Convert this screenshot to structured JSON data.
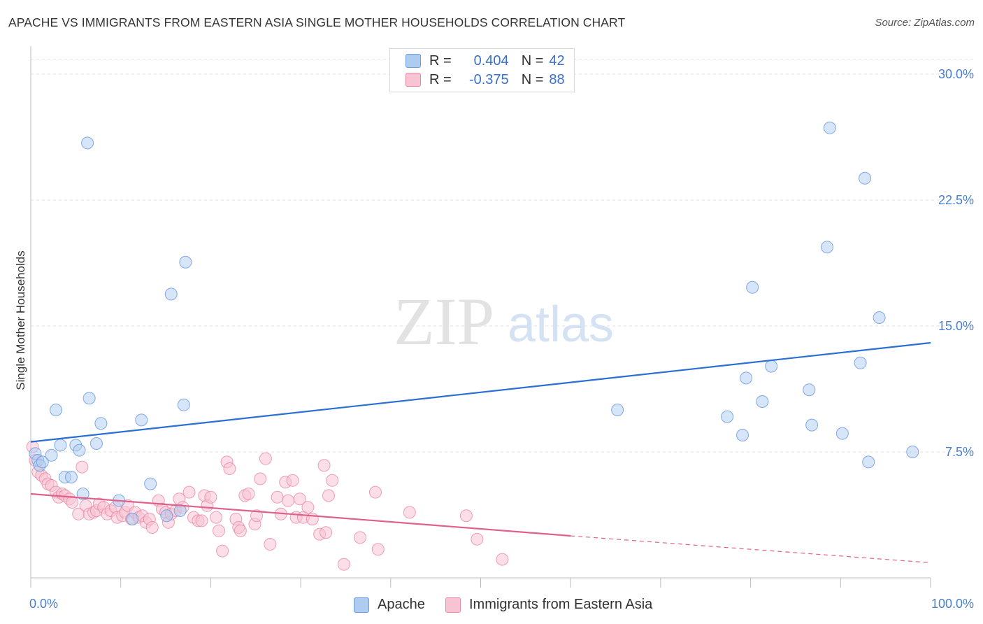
{
  "title": "APACHE VS IMMIGRANTS FROM EASTERN ASIA SINGLE MOTHER HOUSEHOLDS CORRELATION CHART",
  "source": "Source: ZipAtlas.com",
  "watermark": {
    "zip": "ZIP",
    "atlas": "atlas"
  },
  "legend_top": {
    "rows": [
      {
        "r_label": "R =",
        "r_value": "0.404",
        "n_label": "N =",
        "n_value": "42",
        "color": "#aecbf0",
        "border": "#6f9be0"
      },
      {
        "r_label": "R =",
        "r_value": "-0.375",
        "n_label": "N =",
        "n_value": "88",
        "color": "#f8c3d3",
        "border": "#e889a8"
      }
    ]
  },
  "legend_bottom": [
    {
      "label": "Apache",
      "color": "#aecbf0",
      "border": "#6f9be0"
    },
    {
      "label": "Immigrants from Eastern Asia",
      "color": "#f8c3d3",
      "border": "#e889a8"
    }
  ],
  "chart_data": {
    "type": "scatter",
    "xlabel": "",
    "ylabel": "Single Mother Households",
    "xlim": [
      0,
      100
    ],
    "ylim": [
      0,
      31.5
    ],
    "x_tick_labels": [
      "0.0%",
      "100.0%"
    ],
    "y_ticks": [
      7.5,
      15.0,
      22.5,
      30.0
    ],
    "y_tick_labels": [
      "7.5%",
      "15.0%",
      "22.5%",
      "30.0%"
    ],
    "grid": "horizontal dashed",
    "colors": {
      "apache": "#6f9be0",
      "apache_line": "#2a6fd4",
      "immigrants": "#e889a8",
      "immigrants_line": "#e0608a"
    },
    "series": [
      {
        "name": "Apache",
        "trend": {
          "x": [
            0,
            100
          ],
          "y": [
            8.1,
            14.0
          ]
        },
        "points": [
          [
            0.5,
            7.4
          ],
          [
            0.8,
            7.0
          ],
          [
            1.0,
            6.7
          ],
          [
            1.3,
            6.9
          ],
          [
            2.3,
            7.3
          ],
          [
            2.8,
            10.0
          ],
          [
            3.3,
            7.9
          ],
          [
            3.8,
            6.0
          ],
          [
            4.5,
            6.0
          ],
          [
            5.0,
            7.9
          ],
          [
            5.4,
            7.6
          ],
          [
            5.8,
            5.0
          ],
          [
            6.3,
            25.9
          ],
          [
            6.5,
            10.7
          ],
          [
            7.3,
            8.0
          ],
          [
            7.8,
            9.2
          ],
          [
            9.8,
            4.6
          ],
          [
            11.3,
            3.5
          ],
          [
            12.3,
            9.4
          ],
          [
            13.3,
            5.6
          ],
          [
            15.1,
            3.7
          ],
          [
            15.6,
            16.9
          ],
          [
            16.6,
            4.0
          ],
          [
            17.0,
            10.3
          ],
          [
            17.2,
            18.8
          ],
          [
            65.2,
            10.0
          ],
          [
            77.4,
            9.6
          ],
          [
            79.1,
            8.5
          ],
          [
            79.5,
            11.9
          ],
          [
            80.2,
            17.3
          ],
          [
            81.3,
            10.5
          ],
          [
            82.3,
            12.6
          ],
          [
            86.5,
            11.2
          ],
          [
            86.8,
            9.1
          ],
          [
            88.5,
            19.7
          ],
          [
            88.8,
            26.8
          ],
          [
            90.2,
            8.6
          ],
          [
            92.2,
            12.8
          ],
          [
            92.7,
            23.8
          ],
          [
            93.1,
            6.9
          ],
          [
            94.3,
            15.5
          ],
          [
            98.0,
            7.5
          ]
        ]
      },
      {
        "name": "Immigrants from Eastern Asia",
        "trend": {
          "x": [
            0,
            60,
            100
          ],
          "y": [
            5.0,
            2.5,
            0.9
          ],
          "solid_until": 60
        },
        "points": [
          [
            0.2,
            7.8
          ],
          [
            0.5,
            7.0
          ],
          [
            0.8,
            6.3
          ],
          [
            1.2,
            6.1
          ],
          [
            1.6,
            5.9
          ],
          [
            1.9,
            5.6
          ],
          [
            2.3,
            5.5
          ],
          [
            2.8,
            5.1
          ],
          [
            3.1,
            4.8
          ],
          [
            3.5,
            5.0
          ],
          [
            3.8,
            4.9
          ],
          [
            4.3,
            4.7
          ],
          [
            4.6,
            4.5
          ],
          [
            5.3,
            3.8
          ],
          [
            5.7,
            6.6
          ],
          [
            6.1,
            4.3
          ],
          [
            6.5,
            3.8
          ],
          [
            7.0,
            3.9
          ],
          [
            7.3,
            4.0
          ],
          [
            7.6,
            4.4
          ],
          [
            8.1,
            4.2
          ],
          [
            8.5,
            3.8
          ],
          [
            8.9,
            4.0
          ],
          [
            9.4,
            4.2
          ],
          [
            9.6,
            3.6
          ],
          [
            10.2,
            3.7
          ],
          [
            10.5,
            3.9
          ],
          [
            10.8,
            4.3
          ],
          [
            11.2,
            3.5
          ],
          [
            11.6,
            3.9
          ],
          [
            12.0,
            3.6
          ],
          [
            12.4,
            3.7
          ],
          [
            12.8,
            3.3
          ],
          [
            13.2,
            3.5
          ],
          [
            13.5,
            3.0
          ],
          [
            14.2,
            4.6
          ],
          [
            14.6,
            4.1
          ],
          [
            15.0,
            3.9
          ],
          [
            15.3,
            3.3
          ],
          [
            15.6,
            3.8
          ],
          [
            16.1,
            4.0
          ],
          [
            16.5,
            4.7
          ],
          [
            16.9,
            4.2
          ],
          [
            17.6,
            5.1
          ],
          [
            18.1,
            3.6
          ],
          [
            18.6,
            3.4
          ],
          [
            19.0,
            3.4
          ],
          [
            19.3,
            4.9
          ],
          [
            19.6,
            4.3
          ],
          [
            20.0,
            4.8
          ],
          [
            20.6,
            3.6
          ],
          [
            20.9,
            2.8
          ],
          [
            21.3,
            1.6
          ],
          [
            21.8,
            6.9
          ],
          [
            22.1,
            6.5
          ],
          [
            22.8,
            3.5
          ],
          [
            23.1,
            3.0
          ],
          [
            23.3,
            2.8
          ],
          [
            23.8,
            4.9
          ],
          [
            24.2,
            5.0
          ],
          [
            24.9,
            3.2
          ],
          [
            25.1,
            3.7
          ],
          [
            25.5,
            5.9
          ],
          [
            26.1,
            7.1
          ],
          [
            26.6,
            2.0
          ],
          [
            27.4,
            4.8
          ],
          [
            27.8,
            3.8
          ],
          [
            28.3,
            5.7
          ],
          [
            28.6,
            4.6
          ],
          [
            29.1,
            5.8
          ],
          [
            29.5,
            3.6
          ],
          [
            29.9,
            4.7
          ],
          [
            30.3,
            3.6
          ],
          [
            30.8,
            4.2
          ],
          [
            31.3,
            3.5
          ],
          [
            32.1,
            2.6
          ],
          [
            32.6,
            6.7
          ],
          [
            32.8,
            2.7
          ],
          [
            33.1,
            4.9
          ],
          [
            33.5,
            5.8
          ],
          [
            34.8,
            0.8
          ],
          [
            36.6,
            2.4
          ],
          [
            38.3,
            5.1
          ],
          [
            38.6,
            1.7
          ],
          [
            42.1,
            3.9
          ],
          [
            48.4,
            3.7
          ],
          [
            49.6,
            2.3
          ],
          [
            52.4,
            1.1
          ]
        ]
      }
    ]
  }
}
